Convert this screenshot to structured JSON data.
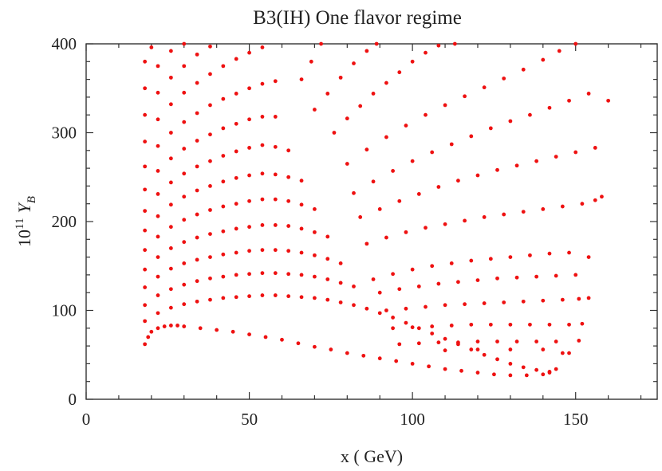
{
  "chart_data": {
    "type": "scatter",
    "title": "B3(IH) One flavor regime",
    "xlabel": "x ( GeV)",
    "ylabel_base": "10",
    "ylabel_exp": "11",
    "ylabel_var": "Y",
    "ylabel_sub": "B",
    "xlim": [
      0,
      175
    ],
    "ylim": [
      0,
      400
    ],
    "x_ticks": [
      0,
      50,
      100,
      150
    ],
    "y_ticks": [
      0,
      100,
      200,
      300,
      400
    ],
    "x_tick_labels": [
      "0",
      "50",
      "100",
      "150"
    ],
    "y_tick_labels": [
      "0",
      "100",
      "200",
      "300",
      "400"
    ],
    "minor_tick_step_x": 10,
    "minor_tick_step_y": 20,
    "marker_color": "#ee1111",
    "grid": false,
    "series": [
      {
        "points": [
          [
            18,
            62
          ],
          [
            19,
            70
          ],
          [
            20,
            76
          ],
          [
            22,
            80
          ],
          [
            24,
            82
          ],
          [
            26,
            83
          ],
          [
            28,
            83
          ],
          [
            30,
            82
          ],
          [
            35,
            80
          ],
          [
            40,
            78
          ],
          [
            45,
            76
          ],
          [
            50,
            73
          ],
          [
            55,
            70
          ],
          [
            60,
            67
          ],
          [
            65,
            63
          ],
          [
            70,
            59
          ],
          [
            75,
            56
          ],
          [
            80,
            52
          ],
          [
            85,
            49
          ],
          [
            90,
            46
          ],
          [
            95,
            43
          ],
          [
            100,
            40
          ],
          [
            105,
            37
          ],
          [
            110,
            34
          ],
          [
            115,
            32
          ],
          [
            120,
            30
          ],
          [
            125,
            28
          ],
          [
            130,
            27
          ],
          [
            135,
            27
          ],
          [
            140,
            28
          ],
          [
            142,
            30
          ],
          [
            144,
            34
          ]
        ]
      },
      {
        "points": [
          [
            18,
            380
          ],
          [
            20,
            396
          ],
          [
            18,
            350
          ],
          [
            22,
            375
          ],
          [
            26,
            392
          ],
          [
            30,
            400
          ],
          [
            18,
            320
          ],
          [
            22,
            345
          ],
          [
            26,
            362
          ],
          [
            30,
            375
          ],
          [
            34,
            388
          ],
          [
            38,
            397
          ],
          [
            18,
            290
          ],
          [
            22,
            315
          ],
          [
            26,
            332
          ],
          [
            30,
            345
          ],
          [
            34,
            356
          ],
          [
            38,
            366
          ],
          [
            42,
            375
          ],
          [
            46,
            383
          ],
          [
            50,
            390
          ],
          [
            54,
            396
          ],
          [
            18,
            262
          ],
          [
            22,
            285
          ],
          [
            26,
            300
          ],
          [
            30,
            312
          ],
          [
            34,
            322
          ],
          [
            38,
            331
          ],
          [
            42,
            338
          ],
          [
            46,
            344
          ],
          [
            50,
            350
          ],
          [
            54,
            355
          ],
          [
            58,
            358
          ],
          [
            18,
            236
          ],
          [
            22,
            257
          ],
          [
            26,
            271
          ],
          [
            30,
            282
          ],
          [
            34,
            291
          ],
          [
            38,
            298
          ],
          [
            42,
            305
          ],
          [
            46,
            310
          ],
          [
            50,
            315
          ],
          [
            54,
            318
          ],
          [
            58,
            318
          ],
          [
            18,
            212
          ],
          [
            22,
            231
          ],
          [
            26,
            244
          ],
          [
            30,
            254
          ],
          [
            34,
            262
          ],
          [
            38,
            268
          ],
          [
            42,
            274
          ],
          [
            46,
            279
          ],
          [
            50,
            283
          ],
          [
            54,
            286
          ],
          [
            58,
            284
          ],
          [
            62,
            280
          ],
          [
            18,
            190
          ],
          [
            22,
            206
          ],
          [
            26,
            219
          ],
          [
            30,
            228
          ],
          [
            34,
            235
          ],
          [
            38,
            240
          ],
          [
            42,
            245
          ],
          [
            46,
            249
          ],
          [
            50,
            252
          ],
          [
            54,
            254
          ],
          [
            58,
            253
          ],
          [
            62,
            250
          ],
          [
            66,
            246
          ],
          [
            18,
            168
          ],
          [
            22,
            183
          ],
          [
            26,
            194
          ],
          [
            30,
            202
          ],
          [
            34,
            208
          ],
          [
            38,
            213
          ],
          [
            42,
            217
          ],
          [
            46,
            220
          ],
          [
            50,
            223
          ],
          [
            54,
            225
          ],
          [
            58,
            225
          ],
          [
            62,
            223
          ],
          [
            66,
            219
          ],
          [
            70,
            214
          ],
          [
            18,
            146
          ],
          [
            22,
            160
          ],
          [
            26,
            170
          ],
          [
            30,
            177
          ],
          [
            34,
            182
          ],
          [
            38,
            186
          ],
          [
            42,
            189
          ],
          [
            46,
            192
          ],
          [
            50,
            194
          ],
          [
            54,
            196
          ],
          [
            58,
            196
          ],
          [
            62,
            195
          ],
          [
            66,
            192
          ],
          [
            70,
            188
          ],
          [
            74,
            183
          ],
          [
            18,
            126
          ],
          [
            22,
            138
          ],
          [
            26,
            147
          ],
          [
            30,
            153
          ],
          [
            34,
            157
          ],
          [
            38,
            160
          ],
          [
            42,
            163
          ],
          [
            46,
            165
          ],
          [
            50,
            167
          ],
          [
            54,
            168
          ],
          [
            58,
            168
          ],
          [
            62,
            167
          ],
          [
            66,
            165
          ],
          [
            70,
            162
          ],
          [
            74,
            158
          ],
          [
            78,
            153
          ],
          [
            18,
            106
          ],
          [
            22,
            117
          ],
          [
            26,
            124
          ],
          [
            30,
            129
          ],
          [
            34,
            133
          ],
          [
            38,
            136
          ],
          [
            42,
            138
          ],
          [
            46,
            140
          ],
          [
            50,
            141
          ],
          [
            54,
            142
          ],
          [
            58,
            142
          ],
          [
            62,
            141
          ],
          [
            66,
            140
          ],
          [
            70,
            138
          ],
          [
            74,
            135
          ],
          [
            78,
            131
          ],
          [
            82,
            127
          ],
          [
            18,
            88
          ],
          [
            22,
            97
          ],
          [
            26,
            103
          ],
          [
            30,
            107
          ],
          [
            34,
            110
          ],
          [
            38,
            112
          ],
          [
            42,
            114
          ],
          [
            46,
            115
          ],
          [
            50,
            116
          ],
          [
            54,
            117
          ],
          [
            58,
            117
          ],
          [
            62,
            116
          ],
          [
            66,
            115
          ],
          [
            70,
            114
          ],
          [
            74,
            112
          ],
          [
            78,
            109
          ],
          [
            82,
            106
          ],
          [
            86,
            102
          ],
          [
            90,
            97
          ],
          [
            94,
            92
          ],
          [
            98,
            86
          ],
          [
            102,
            80
          ],
          [
            106,
            74
          ],
          [
            110,
            68
          ],
          [
            114,
            62
          ],
          [
            118,
            56
          ],
          [
            122,
            50
          ],
          [
            126,
            45
          ],
          [
            130,
            40
          ],
          [
            134,
            36
          ],
          [
            138,
            33
          ],
          [
            142,
            31
          ]
        ]
      },
      {
        "points": [
          [
            66,
            360
          ],
          [
            69,
            380
          ],
          [
            72,
            400
          ],
          [
            70,
            326
          ],
          [
            74,
            344
          ],
          [
            78,
            362
          ],
          [
            82,
            378
          ],
          [
            86,
            392
          ],
          [
            89,
            400
          ],
          [
            76,
            300
          ],
          [
            80,
            316
          ],
          [
            84,
            330
          ],
          [
            88,
            344
          ],
          [
            92,
            356
          ],
          [
            96,
            368
          ],
          [
            100,
            380
          ],
          [
            104,
            390
          ],
          [
            108,
            398
          ],
          [
            113,
            400
          ],
          [
            80,
            265
          ],
          [
            86,
            281
          ],
          [
            92,
            295
          ],
          [
            98,
            308
          ],
          [
            104,
            320
          ],
          [
            110,
            331
          ],
          [
            116,
            341
          ],
          [
            122,
            351
          ],
          [
            128,
            361
          ],
          [
            134,
            371
          ],
          [
            140,
            382
          ],
          [
            145,
            392
          ],
          [
            150,
            400
          ],
          [
            82,
            232
          ],
          [
            88,
            245
          ],
          [
            94,
            257
          ],
          [
            100,
            268
          ],
          [
            106,
            278
          ],
          [
            112,
            287
          ],
          [
            118,
            296
          ],
          [
            124,
            305
          ],
          [
            130,
            313
          ],
          [
            136,
            320
          ],
          [
            142,
            328
          ],
          [
            148,
            336
          ],
          [
            154,
            344
          ],
          [
            160,
            336
          ],
          [
            84,
            205
          ],
          [
            90,
            214
          ],
          [
            96,
            223
          ],
          [
            102,
            231
          ],
          [
            108,
            239
          ],
          [
            114,
            246
          ],
          [
            120,
            252
          ],
          [
            126,
            258
          ],
          [
            132,
            263
          ],
          [
            138,
            268
          ],
          [
            144,
            273
          ],
          [
            150,
            278
          ],
          [
            156,
            283
          ],
          [
            158,
            228
          ],
          [
            86,
            175
          ],
          [
            92,
            182
          ],
          [
            98,
            188
          ],
          [
            104,
            193
          ],
          [
            110,
            197
          ],
          [
            116,
            201
          ],
          [
            122,
            205
          ],
          [
            128,
            208
          ],
          [
            134,
            211
          ],
          [
            140,
            214
          ],
          [
            146,
            217
          ],
          [
            152,
            220
          ],
          [
            156,
            224
          ],
          [
            88,
            135
          ],
          [
            94,
            141
          ],
          [
            100,
            146
          ],
          [
            106,
            150
          ],
          [
            112,
            153
          ],
          [
            118,
            156
          ],
          [
            124,
            158
          ],
          [
            130,
            160
          ],
          [
            136,
            162
          ],
          [
            142,
            164
          ],
          [
            148,
            165
          ],
          [
            154,
            160
          ],
          [
            90,
            120
          ],
          [
            96,
            124
          ],
          [
            102,
            127
          ],
          [
            108,
            130
          ],
          [
            114,
            132
          ],
          [
            120,
            134
          ],
          [
            126,
            136
          ],
          [
            132,
            137
          ],
          [
            138,
            138
          ],
          [
            144,
            139
          ],
          [
            150,
            140
          ],
          [
            154,
            114
          ],
          [
            92,
            100
          ],
          [
            98,
            102
          ],
          [
            104,
            104
          ],
          [
            110,
            106
          ],
          [
            116,
            107
          ],
          [
            122,
            108
          ],
          [
            128,
            109
          ],
          [
            134,
            110
          ],
          [
            140,
            111
          ],
          [
            146,
            112
          ],
          [
            151,
            113
          ],
          [
            152,
            85
          ],
          [
            94,
            80
          ],
          [
            100,
            81
          ],
          [
            106,
            82
          ],
          [
            112,
            83
          ],
          [
            118,
            84
          ],
          [
            124,
            84
          ],
          [
            130,
            84
          ],
          [
            136,
            84
          ],
          [
            142,
            84
          ],
          [
            148,
            84
          ],
          [
            151,
            66
          ],
          [
            96,
            62
          ],
          [
            102,
            63
          ],
          [
            108,
            64
          ],
          [
            114,
            64
          ],
          [
            120,
            65
          ],
          [
            126,
            65
          ],
          [
            132,
            65
          ],
          [
            138,
            65
          ],
          [
            144,
            65
          ],
          [
            148,
            52
          ],
          [
            110,
            55
          ],
          [
            120,
            56
          ],
          [
            130,
            56
          ],
          [
            140,
            56
          ],
          [
            146,
            52
          ]
        ]
      }
    ]
  }
}
